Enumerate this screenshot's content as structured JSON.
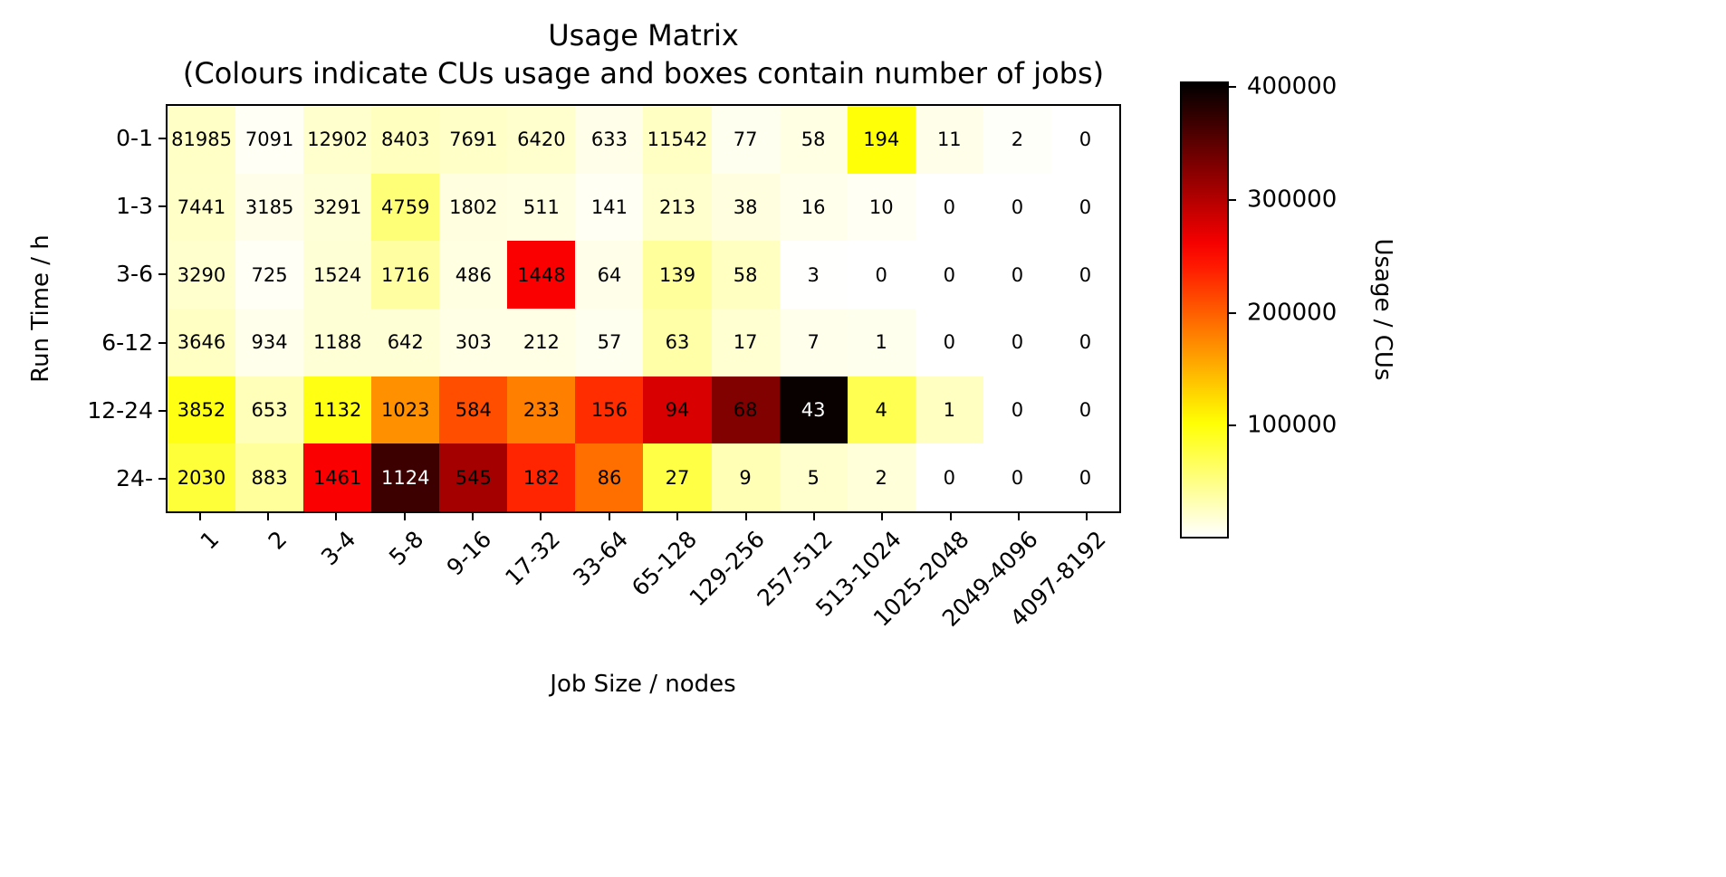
{
  "title": {
    "line1": "Usage Matrix",
    "line2": "(Colours indicate CUs usage and boxes contain number of jobs)"
  },
  "chart_data": {
    "type": "heatmap",
    "title": "Usage Matrix (Colours indicate CUs usage and boxes contain number of jobs)",
    "xlabel": "Job Size / nodes",
    "ylabel": "Run Time / h",
    "x_categories": [
      "1",
      "2",
      "3-4",
      "5-8",
      "9-16",
      "17-32",
      "33-64",
      "65-128",
      "129-256",
      "257-512",
      "513-1024",
      "1025-2048",
      "2049-4096",
      "4097-8192"
    ],
    "y_categories": [
      "0-1",
      "1-3",
      "3-6",
      "6-12",
      "12-24",
      "24-"
    ],
    "cell_value_meaning": "number of jobs",
    "color_meaning": "Usage / CUs",
    "job_counts": [
      [
        81985,
        7091,
        12902,
        8403,
        7691,
        6420,
        633,
        11542,
        77,
        58,
        194,
        11,
        2,
        0
      ],
      [
        7441,
        3185,
        3291,
        4759,
        1802,
        511,
        141,
        213,
        38,
        16,
        10,
        0,
        0,
        0
      ],
      [
        3290,
        725,
        1524,
        1716,
        486,
        1448,
        64,
        139,
        58,
        3,
        0,
        0,
        0,
        0
      ],
      [
        3646,
        934,
        1188,
        642,
        303,
        212,
        57,
        63,
        17,
        7,
        1,
        0,
        0,
        0
      ],
      [
        3852,
        653,
        1132,
        1023,
        584,
        233,
        156,
        94,
        68,
        43,
        4,
        1,
        0,
        0
      ],
      [
        2030,
        883,
        1461,
        1124,
        545,
        182,
        86,
        27,
        9,
        5,
        2,
        0,
        0,
        0
      ]
    ],
    "usage_estimate_cus": [
      [
        23000,
        4000,
        20000,
        26000,
        22000,
        20000,
        9000,
        24000,
        6000,
        11000,
        100000,
        9000,
        2000,
        0
      ],
      [
        22000,
        9000,
        16000,
        55000,
        13000,
        12000,
        5000,
        20000,
        13000,
        8000,
        5000,
        0,
        0,
        0
      ],
      [
        20000,
        4000,
        17000,
        38000,
        12000,
        260000,
        9000,
        40000,
        25000,
        1000,
        0,
        0,
        0,
        0
      ],
      [
        24000,
        8000,
        17000,
        17000,
        10000,
        10000,
        6000,
        35000,
        18000,
        8000,
        7000,
        0,
        0,
        0
      ],
      [
        95000,
        28000,
        95000,
        170000,
        210000,
        180000,
        230000,
        280000,
        330000,
        400000,
        70000,
        25000,
        0,
        0
      ],
      [
        80000,
        40000,
        260000,
        370000,
        310000,
        235000,
        190000,
        75000,
        30000,
        20000,
        15000,
        0,
        0,
        0
      ]
    ],
    "colorbar": {
      "label": "Usage / CUs",
      "ticks": [
        100000,
        200000,
        300000,
        400000
      ],
      "vmin": 0,
      "vmax": 405000,
      "colormap": "hot_r"
    }
  }
}
